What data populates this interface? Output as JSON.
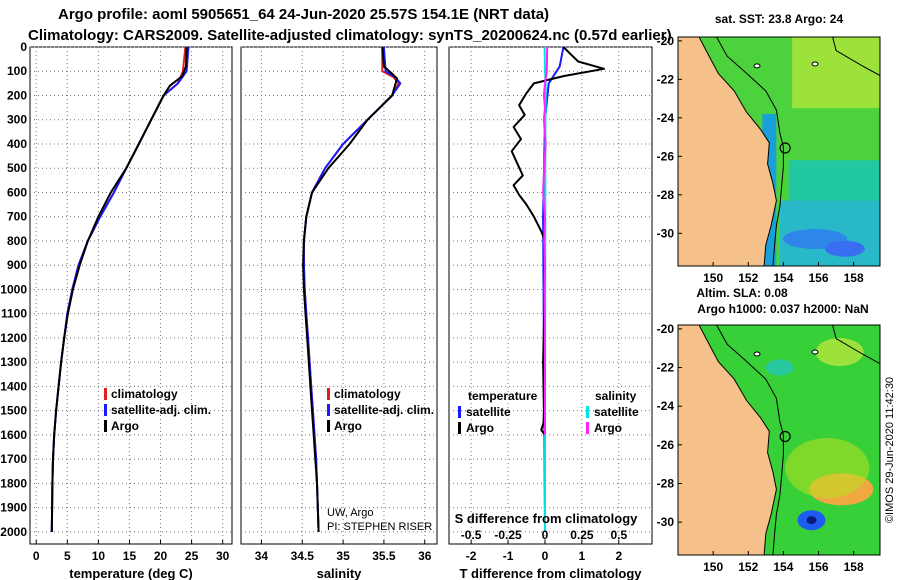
{
  "header": {
    "line1": "Argo profile: aoml 5905651_64 24-Jun-2020 25.57S 154.1E (NRT data)",
    "line2": "Climatology: CARS2009. Satellite-adjusted climatology: synTS_20200624.nc (0.57d earlier)"
  },
  "colors": {
    "climatology": "#e02020",
    "satellite": "#1a1aff",
    "argo": "#000000",
    "s_satellite": "#00e5e5",
    "s_argo": "#ff22ff",
    "land": "#f5c08a",
    "grid": "#777777"
  },
  "chart_data": [
    {
      "type": "line",
      "panel": "temperature",
      "xlabel": "temperature (deg C)",
      "ylabel": "",
      "xlim": [
        -1,
        31.5
      ],
      "ylim": [
        2050,
        0
      ],
      "xticks": [
        "0",
        "5",
        "10",
        "15",
        "20",
        "25",
        "30"
      ],
      "xtick_values": [
        0,
        5,
        10,
        15,
        20,
        25,
        30
      ],
      "yticks": [
        "0",
        "100",
        "200",
        "300",
        "400",
        "500",
        "600",
        "700",
        "800",
        "900",
        "1000",
        "1100",
        "1200",
        "1300",
        "1400",
        "1500",
        "1600",
        "1700",
        "1800",
        "1900",
        "2000"
      ],
      "ytick_values": [
        0,
        100,
        200,
        300,
        400,
        500,
        600,
        700,
        800,
        900,
        1000,
        1100,
        1200,
        1300,
        1400,
        1500,
        1600,
        1700,
        1800,
        1900,
        2000
      ],
      "legend": [
        {
          "label": "climatology",
          "color_key": "climatology"
        },
        {
          "label": "satellite-adj. clim.",
          "color_key": "satellite"
        },
        {
          "label": "Argo",
          "color_key": "argo"
        }
      ],
      "series": [
        {
          "name": "climatology",
          "color_key": "climatology",
          "x": [
            24.0,
            23.6,
            22.8,
            20.5,
            18.5,
            16.5,
            14.5,
            12.5,
            10.3,
            8.3,
            6.8,
            5.8,
            5.0,
            4.5,
            4.0,
            3.6,
            3.2,
            2.9,
            2.7,
            2.6,
            2.5
          ],
          "y": [
            0,
            100,
            150,
            200,
            300,
            400,
            500,
            600,
            700,
            800,
            900,
            1000,
            1100,
            1200,
            1300,
            1400,
            1500,
            1600,
            1700,
            1800,
            2000
          ]
        },
        {
          "name": "satellite-adj. clim.",
          "color_key": "satellite",
          "x": [
            24.5,
            24.2,
            22.8,
            20.5,
            18.5,
            16.5,
            14.5,
            12.5,
            10.3,
            8.3,
            6.8,
            5.8,
            5.0,
            4.5,
            4.0,
            3.6,
            3.2,
            2.9,
            2.7,
            2.6,
            2.5
          ],
          "y": [
            0,
            100,
            150,
            200,
            300,
            400,
            500,
            600,
            700,
            800,
            900,
            1000,
            1100,
            1200,
            1300,
            1400,
            1500,
            1600,
            1700,
            1800,
            2000
          ]
        },
        {
          "name": "Argo",
          "color_key": "argo",
          "x": [
            24.2,
            24.1,
            23.5,
            21.5,
            20.5,
            18.5,
            16.5,
            14.5,
            12.0,
            10.0,
            8.3,
            7.0,
            5.9,
            5.1,
            4.5,
            4.0,
            3.6,
            3.2,
            2.9,
            2.7,
            2.6,
            2.5
          ],
          "y": [
            0,
            80,
            120,
            160,
            200,
            300,
            400,
            500,
            600,
            700,
            800,
            900,
            1000,
            1100,
            1200,
            1300,
            1400,
            1500,
            1600,
            1700,
            1800,
            2000
          ]
        }
      ]
    },
    {
      "type": "line",
      "panel": "salinity",
      "xlabel": "salinity",
      "xlim": [
        33.75,
        36.15
      ],
      "ylim": [
        2050,
        0
      ],
      "xticks": [
        "34",
        "34.5",
        "35",
        "35.5",
        "36"
      ],
      "xtick_values": [
        34,
        34.5,
        35,
        35.5,
        36
      ],
      "legend": [
        {
          "label": "climatology",
          "color_key": "climatology"
        },
        {
          "label": "satellite-adj. clim.",
          "color_key": "satellite"
        },
        {
          "label": "Argo",
          "color_key": "argo"
        }
      ],
      "notes": [
        "UW, Argo",
        "PI: STEPHEN RISER"
      ],
      "series": [
        {
          "name": "climatology",
          "color_key": "climatology",
          "x": [
            35.48,
            35.48,
            35.62,
            35.68,
            35.6,
            35.3,
            35.0,
            34.78,
            34.62,
            34.55,
            34.52,
            34.52,
            34.53,
            34.55,
            34.57,
            34.59,
            34.61,
            34.63,
            34.65,
            34.67,
            34.68,
            34.7
          ],
          "y": [
            0,
            100,
            125,
            150,
            200,
            300,
            400,
            500,
            600,
            700,
            800,
            900,
            1000,
            1100,
            1200,
            1300,
            1400,
            1500,
            1600,
            1700,
            1800,
            2000
          ]
        },
        {
          "name": "satellite-adj. clim.",
          "color_key": "satellite",
          "x": [
            35.5,
            35.52,
            35.64,
            35.7,
            35.6,
            35.3,
            35.0,
            34.78,
            34.62,
            34.55,
            34.52,
            34.52,
            34.53,
            34.55,
            34.57,
            34.59,
            34.61,
            34.63,
            34.65,
            34.67,
            34.68,
            34.7
          ],
          "y": [
            0,
            100,
            125,
            150,
            200,
            300,
            400,
            500,
            600,
            700,
            800,
            900,
            1000,
            1100,
            1200,
            1300,
            1400,
            1500,
            1600,
            1700,
            1800,
            2000
          ]
        },
        {
          "name": "Argo",
          "color_key": "argo",
          "x": [
            35.48,
            35.5,
            35.6,
            35.66,
            35.6,
            35.3,
            35.08,
            34.82,
            34.62,
            34.55,
            34.52,
            34.51,
            34.52,
            34.54,
            34.56,
            34.58,
            34.6,
            34.62,
            34.64,
            34.66,
            34.68,
            34.7
          ],
          "y": [
            0,
            80,
            110,
            130,
            200,
            300,
            400,
            500,
            600,
            700,
            800,
            900,
            1000,
            1100,
            1200,
            1300,
            1400,
            1500,
            1600,
            1700,
            1800,
            2000
          ]
        }
      ]
    },
    {
      "type": "line",
      "panel": "difference",
      "xlabel": "T difference from climatology",
      "xlabel_top": "S difference from climatology",
      "xlim": [
        -2.6,
        2.9
      ],
      "ylim": [
        2050,
        0
      ],
      "xticks": [
        "-2",
        "-1",
        "0",
        "1",
        "2"
      ],
      "xtick_values": [
        -2,
        -1,
        0,
        1,
        2
      ],
      "xticks_top": [
        "-0.5",
        "-0.25",
        "0",
        "0.25",
        "0.5"
      ],
      "xtick_top_values": [
        -0.5,
        -0.25,
        0,
        0.25,
        0.5
      ],
      "legend_left_title": "temperature",
      "legend_right_title": "salinity",
      "legend": [
        {
          "label": "satellite",
          "color_key": "satellite",
          "side": "left"
        },
        {
          "label": "Argo",
          "color_key": "argo",
          "side": "left"
        },
        {
          "label": "satellite",
          "color_key": "s_satellite",
          "side": "right"
        },
        {
          "label": "Argo",
          "color_key": "s_argo",
          "side": "right"
        }
      ],
      "series": [
        {
          "name": "T satellite",
          "color_key": "satellite",
          "x": [
            0.5,
            0.4,
            0.1,
            0.0,
            -0.05,
            0.0
          ],
          "y": [
            0,
            80,
            150,
            300,
            700,
            2000
          ]
        },
        {
          "name": "T Argo",
          "color_key": "argo",
          "x": [
            0.5,
            0.7,
            0.9,
            1.6,
            0.5,
            -0.3,
            -0.5,
            -0.7,
            -0.55,
            -0.85,
            -0.65,
            -0.9,
            -0.75,
            -0.6,
            -0.85,
            -0.7,
            -0.5,
            -0.3,
            -0.1,
            0.0,
            0.0,
            -0.02,
            -0.05,
            -0.03,
            -0.04,
            -0.1,
            0.0
          ],
          "y": [
            0,
            30,
            60,
            90,
            120,
            150,
            190,
            240,
            280,
            330,
            380,
            430,
            480,
            530,
            570,
            610,
            650,
            700,
            760,
            800,
            900,
            1100,
            1300,
            1500,
            1550,
            1580,
            1600
          ]
        },
        {
          "name": "S satellite",
          "color_key": "s_satellite",
          "x": [
            -0.01,
            0.0,
            0.02,
            0.02,
            0.01,
            0.01,
            0.0
          ],
          "y": [
            0,
            100,
            150,
            200,
            400,
            700,
            2000
          ]
        },
        {
          "name": "S Argo",
          "color_key": "s_argo",
          "x": [
            0.06,
            0.05,
            0.0,
            -0.03,
            0.0,
            -0.03,
            0.02,
            -0.02,
            -0.05,
            0.0,
            -0.02,
            0.0,
            -0.01,
            0.0,
            0.0
          ],
          "y": [
            0,
            100,
            150,
            200,
            250,
            300,
            400,
            500,
            600,
            700,
            800,
            900,
            1000,
            1300,
            1600
          ]
        }
      ]
    }
  ],
  "maps": [
    {
      "title": "sat. SST: 23.8 Argo: 24",
      "yticks": [
        "-20",
        "-22",
        "-24",
        "-26",
        "-28",
        "-30"
      ],
      "ytick_values": [
        -20,
        -22,
        -24,
        -26,
        -28,
        -30
      ],
      "xticks": [
        "150",
        "152",
        "154",
        "156",
        "158"
      ],
      "xtick_values": [
        150,
        152,
        154,
        156,
        158
      ],
      "lonlim": [
        148.0,
        159.5
      ],
      "latlim": [
        -31.7,
        -19.8
      ],
      "profile_location": {
        "lon": 154.1,
        "lat": -25.57
      }
    },
    {
      "title_line1": "Altim. SLA: 0.08",
      "title_line2": "Argo h1000: 0.037 h2000: NaN",
      "yticks": [
        "-20",
        "-22",
        "-24",
        "-26",
        "-28",
        "-30"
      ],
      "ytick_values": [
        -20,
        -22,
        -24,
        -26,
        -28,
        -30
      ],
      "xticks": [
        "150",
        "152",
        "154",
        "156",
        "158"
      ],
      "xtick_values": [
        150,
        152,
        154,
        156,
        158
      ],
      "lonlim": [
        148.0,
        159.5
      ],
      "latlim": [
        -31.7,
        -19.8
      ],
      "profile_location": {
        "lon": 154.1,
        "lat": -25.57
      }
    }
  ],
  "stamp": "©IMOS 29-Jun-2020 11:42:30"
}
